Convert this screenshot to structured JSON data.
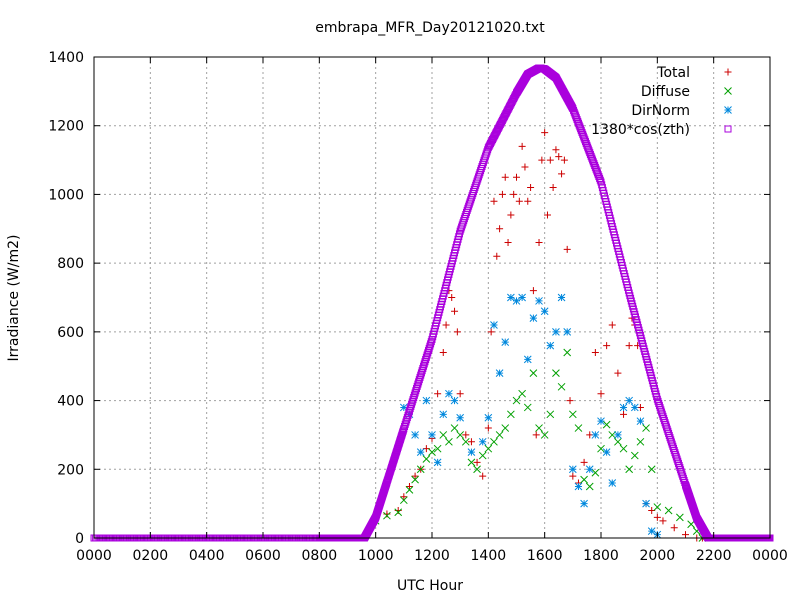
{
  "chart_data": {
    "type": "scatter",
    "title": "embrapa_MFR_Day20121020.txt",
    "xlabel": "UTC Hour",
    "ylabel": "Irradiance (W/m2)",
    "xlim": [
      0,
      2400
    ],
    "ylim": [
      0,
      1400
    ],
    "grid": true,
    "legend_position": "top-right",
    "x_tick_labels": [
      "0000",
      "0200",
      "0400",
      "0600",
      "0800",
      "1000",
      "1200",
      "1400",
      "1600",
      "1800",
      "2000",
      "2200",
      "0000"
    ],
    "y_tick_labels": [
      "0",
      "200",
      "400",
      "600",
      "800",
      "1000",
      "1200",
      "1400"
    ],
    "series": [
      {
        "name": "Total",
        "marker": "+",
        "color": "#cc0000",
        "x": [
          1000,
          1040,
          1080,
          1100,
          1120,
          1140,
          1160,
          1180,
          1200,
          1220,
          1240,
          1250,
          1260,
          1270,
          1280,
          1290,
          1300,
          1320,
          1340,
          1360,
          1380,
          1400,
          1410,
          1420,
          1430,
          1440,
          1450,
          1460,
          1470,
          1480,
          1490,
          1500,
          1510,
          1520,
          1530,
          1540,
          1550,
          1560,
          1570,
          1580,
          1590,
          1600,
          1610,
          1620,
          1630,
          1640,
          1650,
          1660,
          1670,
          1680,
          1690,
          1700,
          1720,
          1740,
          1760,
          1780,
          1800,
          1820,
          1840,
          1860,
          1880,
          1900,
          1910,
          1920,
          1930,
          1940,
          1960,
          1980,
          2000,
          2020,
          2060,
          2100,
          2140,
          2160
        ],
        "y": [
          60,
          70,
          80,
          120,
          150,
          180,
          200,
          260,
          290,
          420,
          540,
          620,
          720,
          700,
          660,
          600,
          420,
          300,
          280,
          220,
          180,
          320,
          600,
          980,
          820,
          900,
          1000,
          1050,
          860,
          940,
          1000,
          1050,
          980,
          1140,
          1080,
          980,
          1020,
          720,
          300,
          860,
          1100,
          1180,
          940,
          1100,
          1020,
          1130,
          1110,
          1060,
          1100,
          840,
          400,
          180,
          160,
          220,
          300,
          540,
          420,
          560,
          620,
          480,
          360,
          560,
          640,
          620,
          560,
          380,
          100,
          80,
          60,
          50,
          30,
          10,
          0,
          0
        ]
      },
      {
        "name": "Diffuse",
        "marker": "x",
        "color": "#00a000",
        "x": [
          1000,
          1040,
          1080,
          1100,
          1120,
          1140,
          1160,
          1180,
          1200,
          1220,
          1240,
          1260,
          1280,
          1300,
          1320,
          1340,
          1360,
          1380,
          1400,
          1420,
          1440,
          1460,
          1480,
          1500,
          1520,
          1540,
          1560,
          1580,
          1600,
          1620,
          1640,
          1660,
          1680,
          1700,
          1720,
          1740,
          1760,
          1780,
          1800,
          1820,
          1840,
          1860,
          1880,
          1900,
          1920,
          1940,
          1960,
          1980,
          2000,
          2040,
          2080,
          2120,
          2140,
          2160
        ],
        "y": [
          50,
          65,
          75,
          110,
          140,
          170,
          200,
          230,
          250,
          260,
          300,
          280,
          320,
          300,
          280,
          220,
          200,
          240,
          260,
          280,
          300,
          320,
          360,
          400,
          420,
          380,
          480,
          320,
          300,
          360,
          480,
          440,
          540,
          360,
          320,
          170,
          150,
          190,
          260,
          330,
          300,
          280,
          260,
          200,
          240,
          280,
          320,
          200,
          90,
          80,
          60,
          40,
          20,
          0
        ]
      },
      {
        "name": "DirNorm",
        "marker": "*",
        "color": "#0088dd",
        "x": [
          1100,
          1120,
          1140,
          1160,
          1180,
          1200,
          1220,
          1240,
          1260,
          1280,
          1300,
          1340,
          1380,
          1400,
          1420,
          1440,
          1460,
          1480,
          1500,
          1520,
          1540,
          1560,
          1580,
          1600,
          1620,
          1640,
          1660,
          1680,
          1700,
          1720,
          1740,
          1760,
          1780,
          1800,
          1820,
          1840,
          1860,
          1880,
          1900,
          1920,
          1940,
          1960,
          1980,
          2000
        ],
        "y": [
          380,
          360,
          300,
          250,
          400,
          300,
          220,
          360,
          420,
          400,
          350,
          250,
          280,
          350,
          620,
          480,
          570,
          700,
          690,
          700,
          520,
          640,
          690,
          660,
          560,
          600,
          700,
          600,
          200,
          150,
          100,
          200,
          300,
          340,
          250,
          160,
          300,
          380,
          400,
          380,
          340,
          100,
          20,
          10
        ]
      },
      {
        "name": "1380*cos(zth)",
        "marker": "square",
        "color": "#aa00dd",
        "x": [
          0,
          200,
          400,
          600,
          800,
          900,
          960,
          1000,
          1040,
          1100,
          1200,
          1300,
          1400,
          1500,
          1540,
          1580,
          1600,
          1640,
          1700,
          1800,
          1900,
          2000,
          2100,
          2140,
          2180,
          2200,
          2300,
          2400
        ],
        "y": [
          0,
          0,
          0,
          0,
          0,
          0,
          0,
          60,
          163,
          318,
          578,
          893,
          1136,
          1295,
          1350,
          1368,
          1365,
          1340,
          1250,
          1036,
          713,
          404,
          155,
          58,
          0,
          0,
          0,
          0
        ]
      }
    ]
  }
}
